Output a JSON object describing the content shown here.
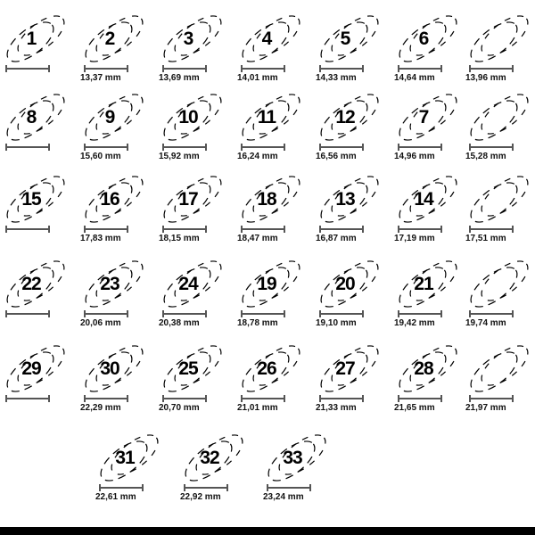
{
  "unit": "mm",
  "items": [
    {
      "label": "1",
      "mm": ""
    },
    {
      "label": "2",
      "mm": "13,37 mm"
    },
    {
      "label": "3",
      "mm": "13,69 mm"
    },
    {
      "label": "4",
      "mm": "14,01 mm"
    },
    {
      "label": "5",
      "mm": "14,33 mm"
    },
    {
      "label": "6",
      "mm": "14,64 mm"
    },
    {
      "label": "",
      "mm": "13,96 mm"
    },
    {
      "label": "8",
      "mm": ""
    },
    {
      "label": "9",
      "mm": "15,60 mm"
    },
    {
      "label": "10",
      "mm": "15,92 mm"
    },
    {
      "label": "11",
      "mm": "16,24 mm"
    },
    {
      "label": "12",
      "mm": "16,56 mm"
    },
    {
      "label": "7",
      "mm": "14,96 mm"
    },
    {
      "label": "",
      "mm": "15,28 mm"
    },
    {
      "label": "15",
      "mm": ""
    },
    {
      "label": "16",
      "mm": "17,83 mm"
    },
    {
      "label": "17",
      "mm": "18,15 mm"
    },
    {
      "label": "18",
      "mm": "18,47 mm"
    },
    {
      "label": "13",
      "mm": "16,87 mm"
    },
    {
      "label": "14",
      "mm": "17,19 mm"
    },
    {
      "label": "",
      "mm": "17,51 mm"
    },
    {
      "label": "22",
      "mm": ""
    },
    {
      "label": "23",
      "mm": "20,06 mm"
    },
    {
      "label": "24",
      "mm": "20,38 mm"
    },
    {
      "label": "19",
      "mm": "18,78 mm"
    },
    {
      "label": "20",
      "mm": "19,10 mm"
    },
    {
      "label": "21",
      "mm": "19,42 mm"
    },
    {
      "label": "",
      "mm": "19,74 mm"
    },
    {
      "label": "29",
      "mm": ""
    },
    {
      "label": "30",
      "mm": "22,29 mm"
    },
    {
      "label": "25",
      "mm": "20,70 mm"
    },
    {
      "label": "26",
      "mm": "21,01 mm"
    },
    {
      "label": "27",
      "mm": "21,33 mm"
    },
    {
      "label": "28",
      "mm": "21,65 mm"
    },
    {
      "label": "",
      "mm": "21,97 mm"
    },
    {
      "label": "31",
      "mm": "22,61 mm"
    },
    {
      "label": "32",
      "mm": "22,92 mm"
    },
    {
      "label": "33",
      "mm": "23,24 mm"
    }
  ]
}
